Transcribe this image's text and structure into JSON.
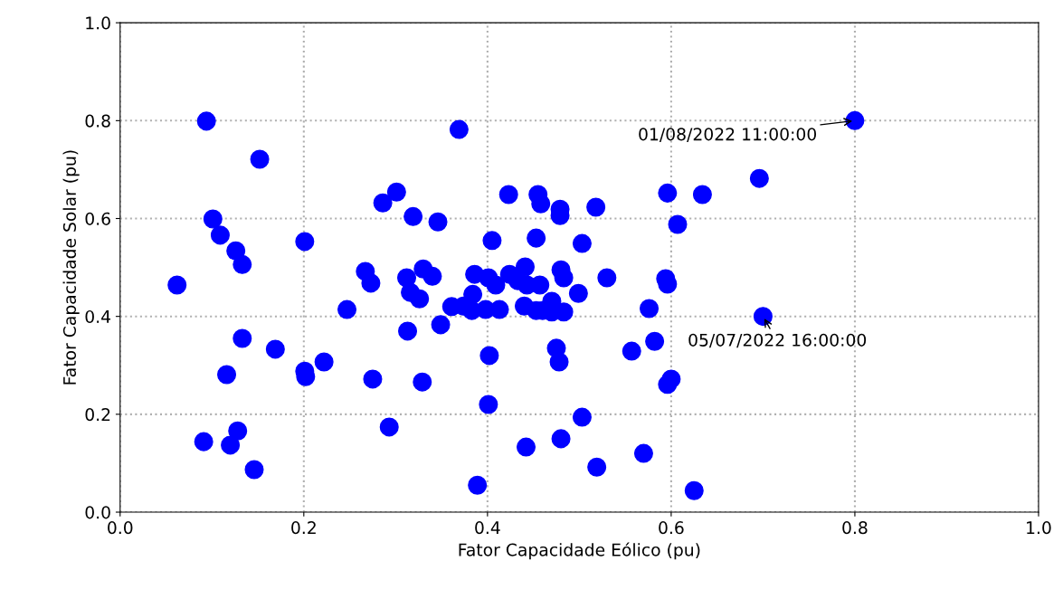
{
  "chart_data": {
    "type": "scatter",
    "xlabel": "Fator Capacidade Eólico (pu)",
    "ylabel": "Fator Capacidade Solar (pu)",
    "xlim": [
      0,
      1
    ],
    "ylim": [
      0,
      1
    ],
    "xticks": [
      {
        "value": 0,
        "label": "0.0"
      },
      {
        "value": 0.2,
        "label": "0.2"
      },
      {
        "value": 0.4,
        "label": "0.4"
      },
      {
        "value": 0.6,
        "label": "0.6"
      },
      {
        "value": 0.8,
        "label": "0.8"
      },
      {
        "value": 1,
        "label": "1.0"
      }
    ],
    "yticks": [
      {
        "value": 0,
        "label": "0.0"
      },
      {
        "value": 0.2,
        "label": "0.2"
      },
      {
        "value": 0.4,
        "label": "0.4"
      },
      {
        "value": 0.6,
        "label": "0.6"
      },
      {
        "value": 0.8,
        "label": "0.8"
      },
      {
        "value": 1,
        "label": "1.0"
      }
    ],
    "grid": true,
    "marker": "circle",
    "series": [
      {
        "color": "#0000ff",
        "x": [
          0.094,
          0.152,
          0.369,
          0.8,
          0.696,
          0.7,
          0.101,
          0.109,
          0.126,
          0.133,
          0.062,
          0.201,
          0.286,
          0.301,
          0.319,
          0.346,
          0.423,
          0.455,
          0.458,
          0.479,
          0.479,
          0.518,
          0.596,
          0.634,
          0.607,
          0.405,
          0.453,
          0.503,
          0.267,
          0.273,
          0.312,
          0.33,
          0.34,
          0.316,
          0.326,
          0.247,
          0.313,
          0.349,
          0.361,
          0.386,
          0.384,
          0.383,
          0.374,
          0.398,
          0.409,
          0.413,
          0.401,
          0.424,
          0.433,
          0.441,
          0.443,
          0.457,
          0.44,
          0.453,
          0.46,
          0.47,
          0.47,
          0.483,
          0.48,
          0.483,
          0.499,
          0.53,
          0.169,
          0.222,
          0.201,
          0.402,
          0.475,
          0.478,
          0.557,
          0.133,
          0.116,
          0.202,
          0.275,
          0.329,
          0.293,
          0.401,
          0.576,
          0.582,
          0.6,
          0.596,
          0.128,
          0.091,
          0.12,
          0.146,
          0.389,
          0.442,
          0.48,
          0.503,
          0.519,
          0.57,
          0.625,
          0.594,
          0.596
        ],
        "values": [
          0.799,
          0.721,
          0.782,
          0.8,
          0.682,
          0.4,
          0.599,
          0.566,
          0.534,
          0.506,
          0.464,
          0.553,
          0.632,
          0.654,
          0.604,
          0.593,
          0.649,
          0.649,
          0.63,
          0.619,
          0.606,
          0.623,
          0.652,
          0.649,
          0.588,
          0.555,
          0.56,
          0.549,
          0.492,
          0.468,
          0.479,
          0.497,
          0.482,
          0.449,
          0.436,
          0.414,
          0.37,
          0.383,
          0.42,
          0.486,
          0.445,
          0.412,
          0.421,
          0.414,
          0.464,
          0.414,
          0.479,
          0.486,
          0.473,
          0.501,
          0.464,
          0.464,
          0.421,
          0.412,
          0.412,
          0.431,
          0.409,
          0.409,
          0.495,
          0.479,
          0.447,
          0.479,
          0.333,
          0.307,
          0.288,
          0.32,
          0.335,
          0.307,
          0.329,
          0.355,
          0.281,
          0.277,
          0.272,
          0.266,
          0.174,
          0.22,
          0.416,
          0.349,
          0.272,
          0.261,
          0.166,
          0.144,
          0.137,
          0.087,
          0.055,
          0.133,
          0.15,
          0.194,
          0.092,
          0.12,
          0.044,
          0.477,
          0.466
        ]
      }
    ],
    "annotations": [
      {
        "text": "01/08/2022 11:00:00",
        "x": 0.8,
        "y": 0.8
      },
      {
        "text": "05/07/2022 16:00:00",
        "x": 0.7,
        "y": 0.4
      }
    ]
  }
}
